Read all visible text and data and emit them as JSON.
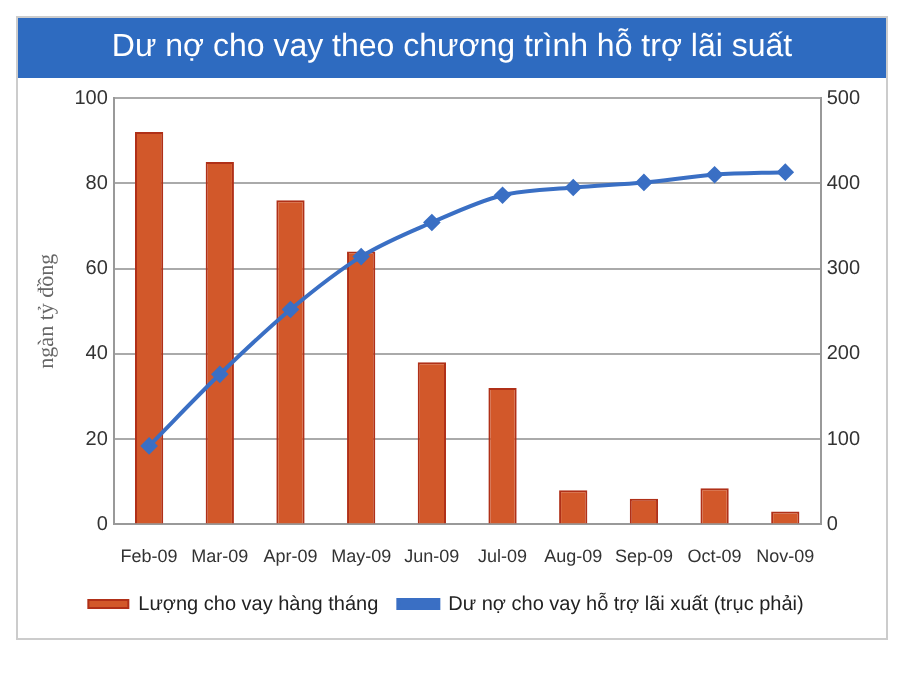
{
  "chart_data": {
    "type": "bar",
    "title": "Dư nợ cho vay theo chương trình hỗ trợ lãi suất",
    "ylabel": "ngàn tỷ đồng",
    "categories": [
      "Feb-09",
      "Mar-09",
      "Apr-09",
      "May-09",
      "Jun-09",
      "Jul-09",
      "Aug-09",
      "Sep-09",
      "Oct-09",
      "Nov-09"
    ],
    "series": [
      {
        "name": "Lượng cho vay hàng tháng",
        "color": "#d2582a",
        "values": [
          92,
          85,
          76,
          64,
          38,
          32,
          8,
          6,
          8.5,
          3
        ]
      },
      {
        "name": "Dư nợ cho vay hỗ trợ lãi xuất (trục phải)",
        "type": "line",
        "axis": "y2",
        "color": "#3a6fc4",
        "values": [
          92,
          176,
          252,
          314,
          354,
          386,
          395,
          401,
          410,
          413
        ]
      }
    ],
    "ylim": [
      0,
      100
    ],
    "yticks": [
      0,
      20,
      40,
      60,
      80,
      100
    ],
    "y2lim": [
      0,
      500
    ],
    "y2ticks": [
      0,
      100,
      200,
      300,
      400,
      500
    ],
    "grid": "y",
    "legend": "bottom",
    "marker": "diamond"
  }
}
